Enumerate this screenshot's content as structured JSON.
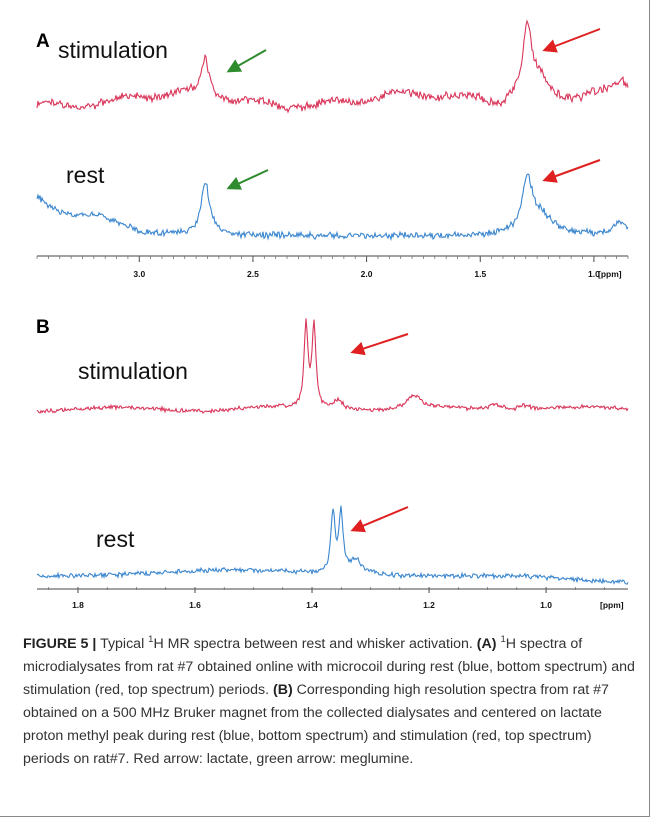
{
  "panel_a": {
    "letter": "A",
    "traces": [
      {
        "name": "stimulation",
        "label": "stimulation",
        "color": "#d9365a"
      },
      {
        "name": "rest",
        "label": "rest",
        "color": "#3a86cf"
      }
    ],
    "axis": {
      "ticks": [
        "3.0",
        "2.5",
        "2.0",
        "1.5",
        "1.0"
      ],
      "unit": "[ppm]",
      "range_ppm": [
        3.45,
        0.85
      ]
    },
    "arrows": [
      {
        "target": "meglumine",
        "trace": "stimulation",
        "color": "#2e8b2e"
      },
      {
        "target": "lactate",
        "trace": "stimulation",
        "color": "#e02020"
      },
      {
        "target": "meglumine",
        "trace": "rest",
        "color": "#2e8b2e"
      },
      {
        "target": "lactate",
        "trace": "rest",
        "color": "#e02020"
      }
    ]
  },
  "panel_b": {
    "letter": "B",
    "traces": [
      {
        "name": "stimulation",
        "label": "stimulation",
        "color": "#d9365a"
      },
      {
        "name": "rest",
        "label": "rest",
        "color": "#3a86cf"
      }
    ],
    "axis": {
      "ticks": [
        "1.8",
        "1.6",
        "1.4",
        "1.2",
        "1.0"
      ],
      "unit": "[ppm]",
      "range_ppm": [
        1.87,
        0.86
      ]
    },
    "arrows": [
      {
        "target": "lactate",
        "trace": "stimulation",
        "color": "#e02020"
      },
      {
        "target": "lactate",
        "trace": "rest",
        "color": "#e02020"
      }
    ]
  },
  "caption": {
    "figure_label": "FIGURE 5",
    "separator": "|",
    "title_pre": "Typical ",
    "title_sup": "1",
    "title_post": "H MR spectra between rest and whisker activation.",
    "part_a_label": "(A)",
    "part_a_sup": "1",
    "part_a_text": "H spectra of microdialysates from rat #7 obtained online with microcoil during rest (blue, bottom spectrum) and stimulation (red, top spectrum) periods.",
    "part_b_label": "(B)",
    "part_b_text": "Corresponding high resolution spectra from rat #7 obtained on a 500 MHz Bruker magnet from the collected dialysates and centered on lactate proton methyl peak during rest (blue, bottom spectrum) and stimulation (red, top spectrum) periods on rat#7. Red arrow: lactate, green arrow: meglumine."
  }
}
